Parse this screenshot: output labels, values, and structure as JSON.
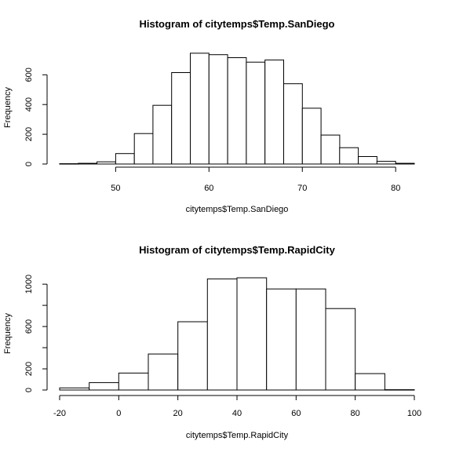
{
  "chart_data": [
    {
      "type": "bar",
      "title": "Histogram of citytemps$Temp.SanDiego",
      "xlabel": "citytemps$Temp.SanDiego",
      "ylabel": "Frequency",
      "xlim": [
        44,
        82
      ],
      "ylim": [
        0,
        760
      ],
      "xticks": [
        50,
        60,
        70,
        80
      ],
      "yticks": [
        0,
        200,
        400,
        600
      ],
      "grid": false,
      "bins": [
        {
          "x0": 44,
          "x1": 46,
          "count": 2
        },
        {
          "x0": 46,
          "x1": 48,
          "count": 5
        },
        {
          "x0": 48,
          "x1": 50,
          "count": 15
        },
        {
          "x0": 50,
          "x1": 52,
          "count": 70
        },
        {
          "x0": 52,
          "x1": 54,
          "count": 205
        },
        {
          "x0": 54,
          "x1": 56,
          "count": 395
        },
        {
          "x0": 56,
          "x1": 58,
          "count": 615
        },
        {
          "x0": 58,
          "x1": 60,
          "count": 745
        },
        {
          "x0": 60,
          "x1": 62,
          "count": 735
        },
        {
          "x0": 62,
          "x1": 64,
          "count": 715
        },
        {
          "x0": 64,
          "x1": 66,
          "count": 685
        },
        {
          "x0": 66,
          "x1": 68,
          "count": 700
        },
        {
          "x0": 68,
          "x1": 70,
          "count": 540
        },
        {
          "x0": 70,
          "x1": 72,
          "count": 375
        },
        {
          "x0": 72,
          "x1": 74,
          "count": 195
        },
        {
          "x0": 74,
          "x1": 76,
          "count": 110
        },
        {
          "x0": 76,
          "x1": 78,
          "count": 50
        },
        {
          "x0": 78,
          "x1": 80,
          "count": 18
        },
        {
          "x0": 80,
          "x1": 82,
          "count": 5
        }
      ]
    },
    {
      "type": "bar",
      "title": "Histogram of citytemps$Temp.RapidCity",
      "xlabel": "citytemps$Temp.RapidCity",
      "ylabel": "Frequency",
      "xlim": [
        -20,
        100
      ],
      "ylim": [
        0,
        1090
      ],
      "xticks": [
        -20,
        0,
        20,
        40,
        60,
        80,
        100
      ],
      "yticks": [
        0,
        200,
        600,
        1000
      ],
      "minor_yticks": [
        400,
        800
      ],
      "grid": false,
      "bins": [
        {
          "x0": -20,
          "x1": -10,
          "count": 20
        },
        {
          "x0": -10,
          "x1": 0,
          "count": 70
        },
        {
          "x0": 0,
          "x1": 10,
          "count": 160
        },
        {
          "x0": 10,
          "x1": 20,
          "count": 340
        },
        {
          "x0": 20,
          "x1": 30,
          "count": 645
        },
        {
          "x0": 30,
          "x1": 40,
          "count": 1050
        },
        {
          "x0": 40,
          "x1": 50,
          "count": 1060
        },
        {
          "x0": 50,
          "x1": 60,
          "count": 955
        },
        {
          "x0": 60,
          "x1": 70,
          "count": 955
        },
        {
          "x0": 70,
          "x1": 80,
          "count": 770
        },
        {
          "x0": 80,
          "x1": 90,
          "count": 155
        },
        {
          "x0": 90,
          "x1": 100,
          "count": 3
        }
      ]
    }
  ]
}
